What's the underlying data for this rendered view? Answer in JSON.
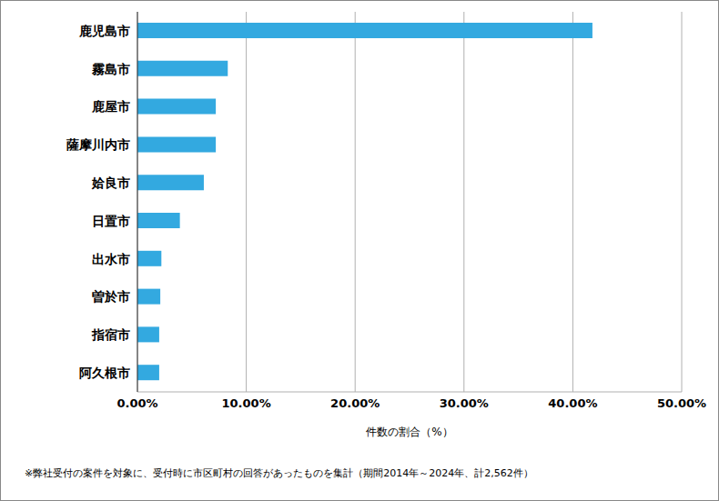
{
  "chart_data": {
    "type": "bar",
    "orientation": "horizontal",
    "categories": [
      "鹿児島市",
      "霧島市",
      "鹿屋市",
      "薩摩川内市",
      "姶良市",
      "日置市",
      "出水市",
      "曽於市",
      "指宿市",
      "阿久根市"
    ],
    "values": [
      41.8,
      8.3,
      7.2,
      7.2,
      6.1,
      3.9,
      2.2,
      2.1,
      2.0,
      2.0
    ],
    "color": "#33a9e0",
    "x_label": "件数の割合（%）",
    "xlim": [
      0,
      50
    ],
    "xticks": [
      {
        "value": 0,
        "label": "0.00%"
      },
      {
        "value": 10,
        "label": "10.00%"
      },
      {
        "value": 20,
        "label": "20.00%"
      },
      {
        "value": 30,
        "label": "30.00%"
      },
      {
        "value": 40,
        "label": "40.00%"
      },
      {
        "value": 50,
        "label": "50.00%"
      }
    ],
    "grid": true,
    "annotation": "※弊社受付の案件を対象に、受付時に市区町村の回答があったものを集計（期間2014年～2024年、計2,562件）"
  }
}
